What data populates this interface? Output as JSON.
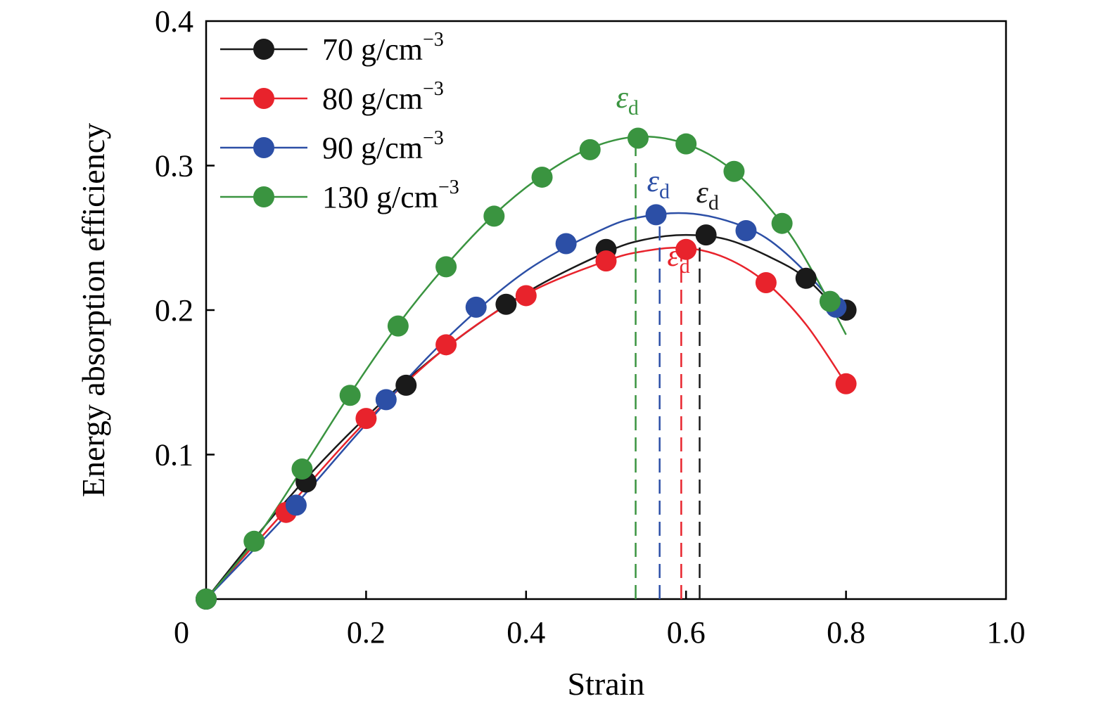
{
  "chart_data": {
    "type": "line",
    "title": "",
    "xlabel": "Strain",
    "ylabel": "Energy absorption efficiency",
    "xlim": [
      0,
      1.0
    ],
    "ylim": [
      0,
      0.4
    ],
    "xticks": [
      0,
      0.2,
      0.4,
      0.6,
      0.8,
      1.0
    ],
    "xtick_labels": [
      "0",
      "0.2",
      "0.4",
      "0.6",
      "0.8",
      "1.0"
    ],
    "yticks": [
      0.1,
      0.2,
      0.3,
      0.4
    ],
    "ytick_labels": [
      "0.1",
      "0.2",
      "0.3",
      "0.4"
    ],
    "grid": false,
    "legend_position": "top-left",
    "series": [
      {
        "name": "70 g/cm",
        "name_sup": "−3",
        "color": "#1a1a1a",
        "points": [
          [
            0.0,
            0.0
          ],
          [
            0.125,
            0.081
          ],
          [
            0.25,
            0.148
          ],
          [
            0.375,
            0.204
          ],
          [
            0.5,
            0.242
          ],
          [
            0.625,
            0.252
          ],
          [
            0.75,
            0.222
          ],
          [
            0.8,
            0.2
          ]
        ],
        "curve": [
          [
            0.0,
            0.0
          ],
          [
            0.1,
            0.068
          ],
          [
            0.2,
            0.126
          ],
          [
            0.3,
            0.174
          ],
          [
            0.4,
            0.212
          ],
          [
            0.5,
            0.24
          ],
          [
            0.55,
            0.249
          ],
          [
            0.6,
            0.252
          ],
          [
            0.65,
            0.249
          ],
          [
            0.7,
            0.238
          ],
          [
            0.75,
            0.222
          ],
          [
            0.8,
            0.193
          ]
        ],
        "peak_strain": 0.617,
        "marker_label": "ε",
        "marker_sub": "d"
      },
      {
        "name": "80 g/cm",
        "name_sup": "−3",
        "color": "#e8232c",
        "points": [
          [
            0.0,
            0.0
          ],
          [
            0.1,
            0.06
          ],
          [
            0.2,
            0.125
          ],
          [
            0.3,
            0.176
          ],
          [
            0.4,
            0.21
          ],
          [
            0.5,
            0.234
          ],
          [
            0.6,
            0.242
          ],
          [
            0.7,
            0.219
          ],
          [
            0.8,
            0.149
          ]
        ],
        "curve": [
          [
            0.0,
            0.0
          ],
          [
            0.1,
            0.062
          ],
          [
            0.2,
            0.123
          ],
          [
            0.3,
            0.174
          ],
          [
            0.4,
            0.211
          ],
          [
            0.5,
            0.234
          ],
          [
            0.55,
            0.241
          ],
          [
            0.6,
            0.243
          ],
          [
            0.65,
            0.236
          ],
          [
            0.7,
            0.219
          ],
          [
            0.75,
            0.19
          ],
          [
            0.8,
            0.149
          ]
        ],
        "peak_strain": 0.594,
        "marker_label": "ε",
        "marker_sub": "d"
      },
      {
        "name": "90 g/cm",
        "name_sup": "−3",
        "color": "#2c4fa6",
        "points": [
          [
            0.0,
            0.0
          ],
          [
            0.1125,
            0.065
          ],
          [
            0.225,
            0.138
          ],
          [
            0.3375,
            0.202
          ],
          [
            0.45,
            0.246
          ],
          [
            0.5625,
            0.266
          ],
          [
            0.675,
            0.255
          ],
          [
            0.7875,
            0.202
          ]
        ],
        "curve": [
          [
            0.0,
            0.0
          ],
          [
            0.1,
            0.058
          ],
          [
            0.2,
            0.121
          ],
          [
            0.3,
            0.18
          ],
          [
            0.4,
            0.227
          ],
          [
            0.5,
            0.257
          ],
          [
            0.55,
            0.265
          ],
          [
            0.6,
            0.267
          ],
          [
            0.65,
            0.262
          ],
          [
            0.7,
            0.25
          ],
          [
            0.75,
            0.226
          ],
          [
            0.8,
            0.195
          ]
        ],
        "peak_strain": 0.567,
        "marker_label": "ε",
        "marker_sub": "d"
      },
      {
        "name": "130 g/cm",
        "name_sup": "−3",
        "color": "#3a9440",
        "points": [
          [
            0.0,
            0.0
          ],
          [
            0.06,
            0.04
          ],
          [
            0.12,
            0.09
          ],
          [
            0.18,
            0.141
          ],
          [
            0.24,
            0.189
          ],
          [
            0.3,
            0.23
          ],
          [
            0.36,
            0.265
          ],
          [
            0.42,
            0.292
          ],
          [
            0.48,
            0.311
          ],
          [
            0.54,
            0.319
          ],
          [
            0.6,
            0.315
          ],
          [
            0.66,
            0.296
          ],
          [
            0.72,
            0.26
          ],
          [
            0.78,
            0.206
          ]
        ],
        "curve": [
          [
            0.0,
            0.0
          ],
          [
            0.06,
            0.04
          ],
          [
            0.12,
            0.09
          ],
          [
            0.18,
            0.142
          ],
          [
            0.24,
            0.19
          ],
          [
            0.3,
            0.231
          ],
          [
            0.36,
            0.266
          ],
          [
            0.42,
            0.293
          ],
          [
            0.48,
            0.312
          ],
          [
            0.54,
            0.32
          ],
          [
            0.6,
            0.315
          ],
          [
            0.66,
            0.296
          ],
          [
            0.72,
            0.26
          ],
          [
            0.76,
            0.225
          ],
          [
            0.8,
            0.183
          ]
        ],
        "peak_strain": 0.537,
        "marker_label": "ε",
        "marker_sub": "d"
      }
    ]
  }
}
